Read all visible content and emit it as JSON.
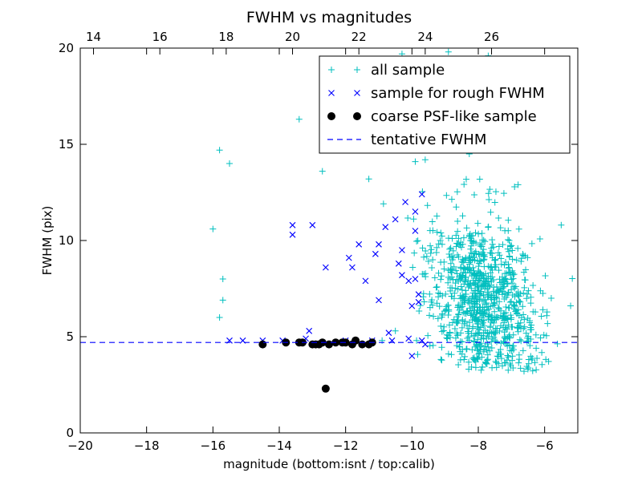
{
  "chart_data": {
    "type": "scatter",
    "title": "FWHM vs magnitudes",
    "xlabel": "magnitude (bottom:isnt / top:calib)",
    "ylabel": "FWHM (pix)",
    "xlim": [
      -20,
      -5
    ],
    "ylim": [
      0,
      20
    ],
    "x_ticks": [
      -20,
      -18,
      -16,
      -14,
      -12,
      -10,
      -8,
      -6
    ],
    "x_tick_labels": [
      "−20",
      "−18",
      "−16",
      "−14",
      "−12",
      "−10",
      "−8",
      "−6"
    ],
    "y_ticks": [
      0,
      5,
      10,
      15,
      20
    ],
    "y_tick_labels": [
      "0",
      "5",
      "10",
      "15",
      "20"
    ],
    "top_axis": {
      "ticks": [
        14,
        16,
        18,
        20,
        22,
        24,
        26
      ],
      "tick_labels": [
        "14",
        "16",
        "18",
        "20",
        "22",
        "24",
        "26"
      ],
      "offset": 33.6
    },
    "grid": false,
    "legend_position": "top-right",
    "series": [
      {
        "name": "all sample",
        "marker": "plus",
        "color": "#00bfbf",
        "explicit_points": [
          [
            -16.0,
            10.6
          ],
          [
            -15.8,
            14.7
          ],
          [
            -15.5,
            14.0
          ],
          [
            -15.7,
            8.0
          ],
          [
            -15.7,
            6.9
          ],
          [
            -15.8,
            6.0
          ],
          [
            -13.4,
            16.3
          ],
          [
            -12.7,
            13.6
          ],
          [
            -11.3,
            13.2
          ],
          [
            -10.3,
            19.7
          ],
          [
            -9.9,
            14.1
          ],
          [
            -7.7,
            19.6
          ],
          [
            -8.9,
            19.8
          ],
          [
            -5.5,
            10.8
          ],
          [
            -5.8,
            7.0
          ],
          [
            -6.8,
            12.9
          ],
          [
            -9.6,
            14.2
          ],
          [
            -10.9,
            4.8
          ],
          [
            -10.5,
            5.3
          ]
        ],
        "cloud": {
          "n": 900,
          "x_center": -7.9,
          "x_spread": 0.85,
          "y_center": 7.0,
          "y_spread": 2.2
        }
      },
      {
        "name": "sample for rough FWHM",
        "marker": "x",
        "color": "#0000ff",
        "points": [
          [
            -15.5,
            4.8
          ],
          [
            -15.1,
            4.8
          ],
          [
            -14.5,
            4.8
          ],
          [
            -13.9,
            4.8
          ],
          [
            -13.6,
            10.8
          ],
          [
            -13.6,
            10.3
          ],
          [
            -13.2,
            4.9
          ],
          [
            -13.1,
            5.3
          ],
          [
            -13.0,
            10.8
          ],
          [
            -12.6,
            8.6
          ],
          [
            -12.0,
            4.8
          ],
          [
            -11.9,
            9.1
          ],
          [
            -11.8,
            8.6
          ],
          [
            -11.7,
            4.8
          ],
          [
            -11.6,
            9.8
          ],
          [
            -11.4,
            7.9
          ],
          [
            -11.2,
            4.8
          ],
          [
            -11.1,
            9.3
          ],
          [
            -11.0,
            9.8
          ],
          [
            -11.0,
            6.9
          ],
          [
            -10.8,
            10.7
          ],
          [
            -10.7,
            5.2
          ],
          [
            -10.6,
            4.8
          ],
          [
            -10.5,
            11.1
          ],
          [
            -10.4,
            8.8
          ],
          [
            -10.3,
            8.2
          ],
          [
            -10.2,
            12.0
          ],
          [
            -10.1,
            4.9
          ],
          [
            -10.0,
            4.0
          ],
          [
            -10.0,
            6.6
          ],
          [
            -9.9,
            11.5
          ],
          [
            -9.9,
            10.5
          ],
          [
            -9.8,
            7.2
          ],
          [
            -9.7,
            4.8
          ],
          [
            -9.6,
            4.6
          ],
          [
            -9.7,
            12.4
          ],
          [
            -10.1,
            7.9
          ],
          [
            -9.8,
            6.8
          ],
          [
            -10.3,
            9.5
          ],
          [
            -9.9,
            8.0
          ]
        ]
      },
      {
        "name": "coarse PSF-like sample",
        "marker": "dot",
        "color": "#000000",
        "points": [
          [
            -14.5,
            4.6
          ],
          [
            -13.8,
            4.7
          ],
          [
            -13.4,
            4.7
          ],
          [
            -13.3,
            4.7
          ],
          [
            -13.0,
            4.6
          ],
          [
            -12.8,
            4.6
          ],
          [
            -12.7,
            4.7
          ],
          [
            -12.5,
            4.6
          ],
          [
            -12.3,
            4.7
          ],
          [
            -12.1,
            4.7
          ],
          [
            -12.0,
            4.7
          ],
          [
            -11.8,
            4.6
          ],
          [
            -11.7,
            4.8
          ],
          [
            -11.5,
            4.6
          ],
          [
            -11.3,
            4.6
          ],
          [
            -11.2,
            4.7
          ],
          [
            -12.6,
            2.3
          ],
          [
            -12.9,
            4.6
          ]
        ]
      },
      {
        "name": "tentative FWHM",
        "marker": "dashed-line",
        "color": "#0000ff",
        "y": 4.7
      }
    ]
  }
}
